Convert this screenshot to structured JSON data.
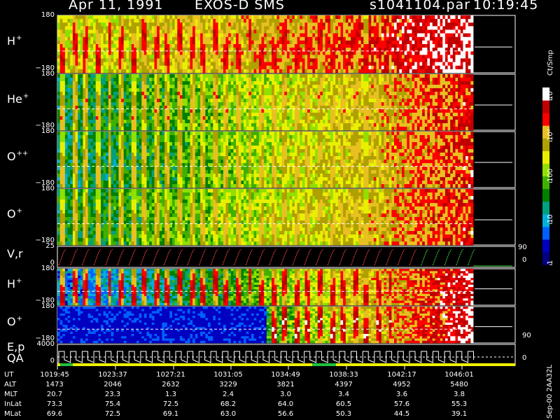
{
  "header": {
    "date": "Apr 11, 1991",
    "instrument": "EXOS-D SMS",
    "file": "s1041104.par",
    "time": "10:19:45"
  },
  "colorbar": {
    "unit": "Ct/Smp",
    "ticks": [
      {
        "label": "1",
        "value": 1
      },
      {
        "label": "10",
        "value": 10
      },
      {
        "label": "100",
        "value": 100
      },
      {
        "label": "10³",
        "value": 1000
      },
      {
        "label": "10⁴",
        "value": 10000
      }
    ],
    "colors": [
      "#000080",
      "#0000c0",
      "#0060ff",
      "#00b0d8",
      "#00a080",
      "#008000",
      "#40b000",
      "#90e000",
      "#e8f000",
      "#b0a000",
      "#e8c020",
      "#ff0000",
      "#c00000",
      "#ffffff"
    ]
  },
  "footer_code": "Sep-00 2AA32L",
  "panels": [
    {
      "name": "H",
      "sup": "+",
      "ytop": "180",
      "ybot": "−180",
      "kind": "angle",
      "base": 2.6,
      "growth": 1.6,
      "streak": 3.9
    },
    {
      "name": "He",
      "sup": "+",
      "ytop": "180",
      "ybot": "−180",
      "kind": "angle",
      "base": 1.5,
      "growth": 2.3,
      "streak": 3.5
    },
    {
      "name": "O",
      "sup": "++",
      "ytop": "180",
      "ybot": "−180",
      "kind": "angle",
      "base": 1.4,
      "growth": 2.4,
      "streak": 3.4
    },
    {
      "name": "O",
      "sup": "+",
      "ytop": "180",
      "ybot": "−180",
      "kind": "angle",
      "base": 1.6,
      "growth": 2.2,
      "streak": 3.4
    },
    {
      "name": "V,r",
      "sup": "",
      "ytop": "25",
      "ybot": "0",
      "kind": "line",
      "right_top": "90",
      "right_bot": "0"
    },
    {
      "name": "H",
      "sup": "+",
      "ytop": "180",
      "ybot": "−180",
      "kind": "angle2",
      "base": 0.8,
      "growth": 3.3,
      "streak": 4.0
    },
    {
      "name": "O",
      "sup": "+",
      "ytop": "180",
      "ybot": "−180",
      "kind": "angle3",
      "base": 0.3,
      "growth": 3.9,
      "streak": 4.2,
      "right_bot": "90"
    },
    {
      "name": "E,p",
      "sup": "",
      "name2": "QA",
      "ytop": "4000",
      "ybot": "0",
      "kind": "energy",
      "right_bot": "0"
    }
  ],
  "table": {
    "rows": [
      {
        "label": "UT",
        "values": [
          "1019:45",
          "1023:37",
          "1027:21",
          "1031:05",
          "1034:49",
          "1038:33",
          "1042:17",
          "1046:01"
        ]
      },
      {
        "label": "ALT",
        "values": [
          "1473",
          "2046",
          "2632",
          "3229",
          "3821",
          "4397",
          "4952",
          "5480"
        ]
      },
      {
        "label": "MLT",
        "values": [
          "20.7",
          "23.3",
          "1.3",
          "2.4",
          "3.0",
          "3.4",
          "3.6",
          "3.8"
        ]
      },
      {
        "label": "InLat",
        "values": [
          "73.3",
          "75.4",
          "72.5",
          "68.2",
          "64.0",
          "60.5",
          "57.6",
          "55.3"
        ]
      },
      {
        "label": "MLat",
        "values": [
          "69.6",
          "72.5",
          "69.1",
          "63.0",
          "56.6",
          "50.3",
          "44.5",
          "39.1"
        ]
      }
    ]
  }
}
